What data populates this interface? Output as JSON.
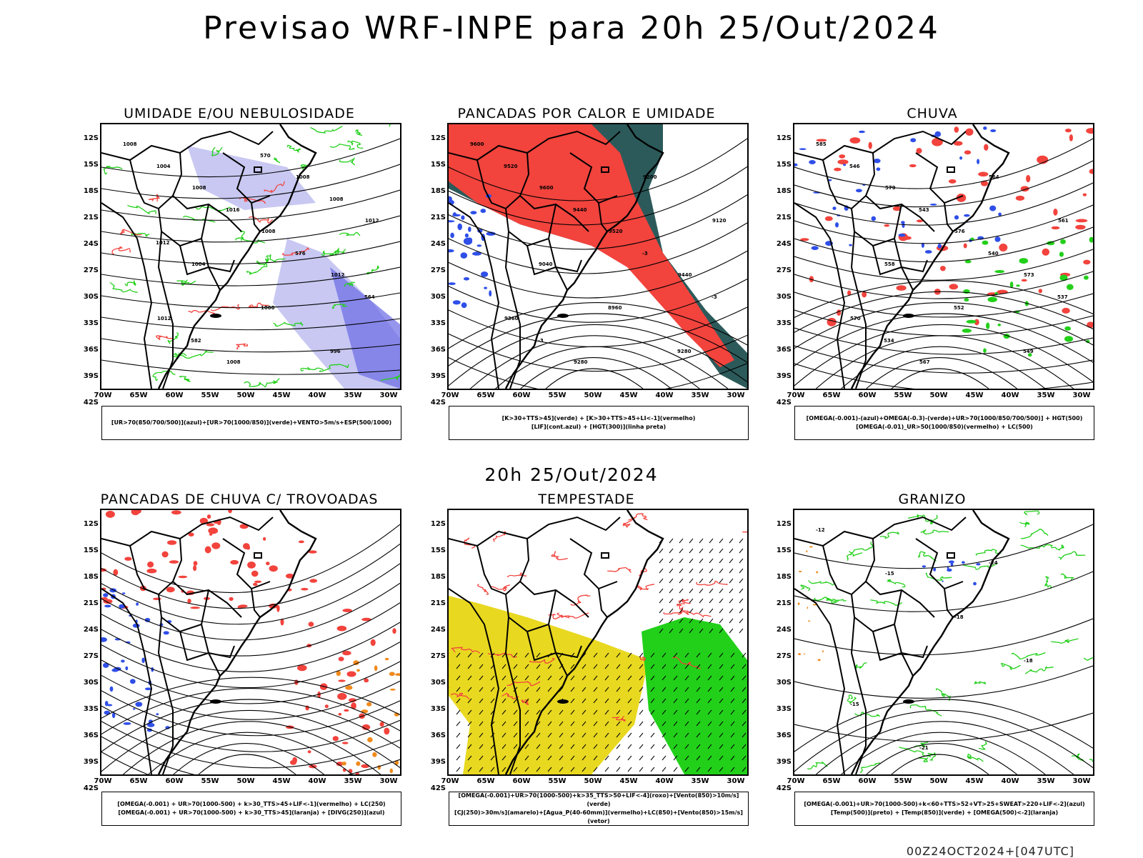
{
  "header": {
    "title": "Previsao WRF-INPE  para 20h 25/Out/2024"
  },
  "middle": {
    "title": "20h 25/Out/2024"
  },
  "footer": {
    "run": "00Z24OCT2024+[047UTC]"
  },
  "axes": {
    "lat": [
      "12S",
      "15S",
      "18S",
      "21S",
      "24S",
      "27S",
      "30S",
      "33S",
      "36S",
      "39S",
      "42S"
    ],
    "lon": [
      "70W",
      "65W",
      "60W",
      "55W",
      "50W",
      "45W",
      "40W",
      "35W",
      "30W"
    ]
  },
  "colors": {
    "blue": "#2f4fe8",
    "green": "#22d01a",
    "red": "#f2433d",
    "orange": "#f08a1c",
    "lavender": "#c8c8f2",
    "teal": "#2c5a5a",
    "yellow": "#e8d820",
    "purple": "#b020c8"
  },
  "panels": [
    {
      "id": "umidade",
      "title": "UMIDADE E/OU NEBULOSIDADE",
      "legend": [
        "[UR>70(850/700/500)](azul)+[UR>70(1000/850)](verde)+VENTO>5m/s+ESP(500/1000)"
      ],
      "labels": [
        "1008",
        "1008",
        "1008",
        "1012",
        "1012",
        "1008",
        "1008",
        "1012",
        "1004",
        "1000",
        "996",
        "1004",
        "1016",
        "576",
        "564",
        "582",
        "570",
        "1008",
        "1012"
      ]
    },
    {
      "id": "pancadas-calor",
      "title": "PANCADAS POR CALOR E UMIDADE",
      "legend": [
        "[K>30+TTS>45](verde) + [K>30+TTS>45+LI<-1](vermelho)",
        "[LIF](cont.azul) + [HGT(300)](linha preta)"
      ],
      "labels": [
        "9600",
        "9600",
        "9520",
        "9440",
        "9360",
        "9280",
        "9200",
        "9120",
        "9040",
        "8960",
        "9280",
        "9520",
        "9440",
        "-3",
        "-3",
        "-3"
      ]
    },
    {
      "id": "chuva",
      "title": "CHUVA",
      "legend": [
        "[OMEGA(-0.001)-(azul)+OMEGA(-0.3)-(verde)+UR>70(1000/850/700/500)] + HGT(500)",
        "[OMEGA(-0.01)_UR>50(1000/850)(vermelho) + LC(500)"
      ],
      "labels": [
        "585",
        "579",
        "576",
        "573",
        "570",
        "567",
        "564",
        "561",
        "558",
        "552",
        "549",
        "546",
        "543",
        "540",
        "537",
        "534"
      ]
    },
    {
      "id": "pancadas-trovoadas",
      "title": "PANCADAS DE CHUVA C/ TROVOADAS",
      "legend": [
        "[OMEGA(-0.001) + UR>70(1000-500) + k>30_TTS>45+LIF<-1](vermelho) + LC(250)",
        "[OMEGA(-0.001) + UR>70(1000-500) + k>30_TTS>45](laranja) + [DIVG(250)](azul)"
      ],
      "labels": []
    },
    {
      "id": "tempestade",
      "title": "TEMPESTADE",
      "legend": [
        "[OMEGA(-0.001)+UR>70(1000-500)+k>35_TTS>50+LIF<-4](roxo)+[Vento(850)>10m/s](verde)",
        "[CJ(250)>30m/s](amarelo)+[Agua_P(40-60mm)](vermelho)+LC(850)+[Vento(850)>15m/s](vetor)"
      ],
      "labels": []
    },
    {
      "id": "granizo",
      "title": "GRANIZO",
      "legend": [
        "[OMEGA(-0.001)+UR>70(1000-500)+k<60+TTS>52+VT>25+SWEAT>220+LIF<-2](azul)",
        "[Temp(500)](preto) + [Temp(850)](verde) + [OMEGA(500)<-2](laranja)"
      ],
      "labels": [
        "-12",
        "-15",
        "-18",
        "-18",
        "-15",
        "-21",
        "-24"
      ]
    }
  ]
}
